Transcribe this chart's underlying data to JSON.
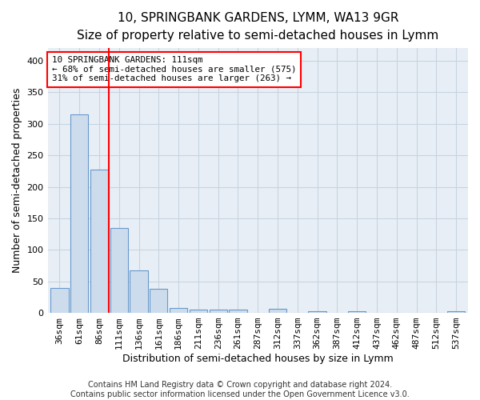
{
  "title": "10, SPRINGBANK GARDENS, LYMM, WA13 9GR",
  "subtitle": "Size of property relative to semi-detached houses in Lymm",
  "xlabel": "Distribution of semi-detached houses by size in Lymm",
  "ylabel": "Number of semi-detached properties",
  "bar_labels": [
    "36sqm",
    "61sqm",
    "86sqm",
    "111sqm",
    "136sqm",
    "161sqm",
    "186sqm",
    "211sqm",
    "236sqm",
    "261sqm",
    "287sqm",
    "312sqm",
    "337sqm",
    "362sqm",
    "387sqm",
    "412sqm",
    "437sqm",
    "462sqm",
    "487sqm",
    "512sqm",
    "537sqm"
  ],
  "bar_values": [
    40,
    315,
    228,
    135,
    67,
    38,
    8,
    5,
    5,
    5,
    0,
    6,
    0,
    3,
    0,
    3,
    0,
    0,
    0,
    0,
    3
  ],
  "bar_color": "#cddcec",
  "bar_edge_color": "#6699cc",
  "red_line_index": 2.5,
  "annotation_text": "10 SPRINGBANK GARDENS: 111sqm\n← 68% of semi-detached houses are smaller (575)\n31% of semi-detached houses are larger (263) →",
  "annotation_box_color": "white",
  "annotation_box_edge_color": "red",
  "footer_text": "Contains HM Land Registry data © Crown copyright and database right 2024.\nContains public sector information licensed under the Open Government Licence v3.0.",
  "ylim": [
    0,
    420
  ],
  "yticks": [
    0,
    50,
    100,
    150,
    200,
    250,
    300,
    350,
    400
  ],
  "bg_color": "#e8eef5",
  "grid_color": "#c8d4e0",
  "title_fontsize": 11,
  "subtitle_fontsize": 10,
  "axis_label_fontsize": 9,
  "tick_fontsize": 8,
  "footer_fontsize": 7
}
